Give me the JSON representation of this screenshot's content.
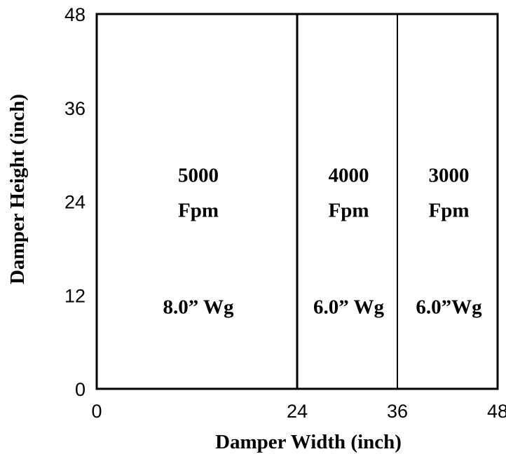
{
  "chart_data": {
    "type": "area",
    "xlabel": "Damper Width (inch)",
    "ylabel": "Damper Height (inch)",
    "xlim": [
      0,
      48
    ],
    "ylim": [
      0,
      48
    ],
    "x_ticks": [
      "0",
      "24",
      "36",
      "48"
    ],
    "y_ticks": [
      "0",
      "12",
      "24",
      "36",
      "48"
    ],
    "grid": false,
    "colors": {
      "plot_border": "#000000",
      "divider": "#000000",
      "text": "#000000"
    },
    "dividers": [
      24,
      36
    ],
    "regions": [
      {
        "x_start": 0,
        "x_end": 24,
        "velocity_value": "5000",
        "velocity_unit": "Fpm",
        "pressure": "8.0” Wg"
      },
      {
        "x_start": 24,
        "x_end": 36,
        "velocity_value": "4000",
        "velocity_unit": "Fpm",
        "pressure": "6.0” Wg"
      },
      {
        "x_start": 36,
        "x_end": 48,
        "velocity_value": "3000",
        "velocity_unit": "Fpm",
        "pressure": "6.0”Wg"
      }
    ]
  }
}
